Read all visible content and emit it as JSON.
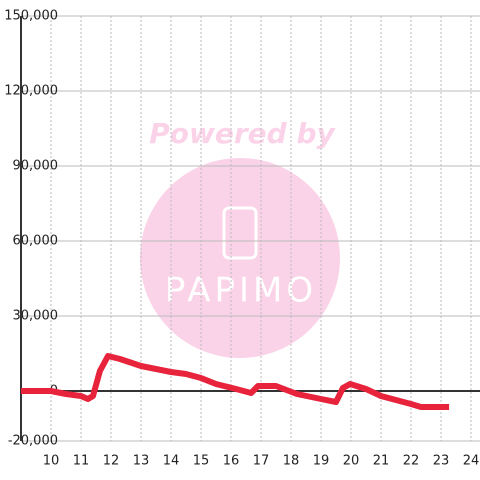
{
  "chart_data": {
    "type": "line",
    "watermark": {
      "caption": "Powered by",
      "brand": "PAPIMO"
    },
    "x": [
      9,
      10,
      10.5,
      11,
      11.23,
      11.4,
      11.63,
      11.9,
      12.3,
      13,
      14,
      14.5,
      15,
      15.5,
      16.17,
      16.67,
      16.9,
      17.5,
      18.2,
      19,
      19.5,
      19.73,
      19.97,
      20.5,
      21,
      22,
      22.33,
      23.27
    ],
    "series": [
      {
        "color": "#e8243c",
        "values": [
          0,
          0,
          -1200,
          -2000,
          -3200,
          -2000,
          8000,
          14000,
          12800,
          10000,
          7600,
          6800,
          5200,
          2800,
          800,
          -800,
          2000,
          2000,
          -1200,
          -3200,
          -4400,
          1200,
          2800,
          800,
          -2000,
          -5200,
          -6400,
          -6400
        ]
      }
    ],
    "xlim": [
      9,
      24.3
    ],
    "xticks": [
      10,
      11,
      12,
      13,
      14,
      15,
      16,
      17,
      18,
      19,
      20,
      21,
      22,
      23,
      24
    ],
    "ylim": [
      -20000,
      150000
    ],
    "yticks": [
      {
        "value": -20000,
        "label": "-20,000"
      },
      0,
      {
        "value": 30000,
        "label": "30,000"
      },
      {
        "value": 60000,
        "label": "60,000"
      },
      {
        "value": 90000,
        "label": "90,000"
      },
      {
        "value": 120000,
        "label": "120,000"
      },
      {
        "value": 150000,
        "label": "150,000"
      }
    ],
    "grid": true
  }
}
